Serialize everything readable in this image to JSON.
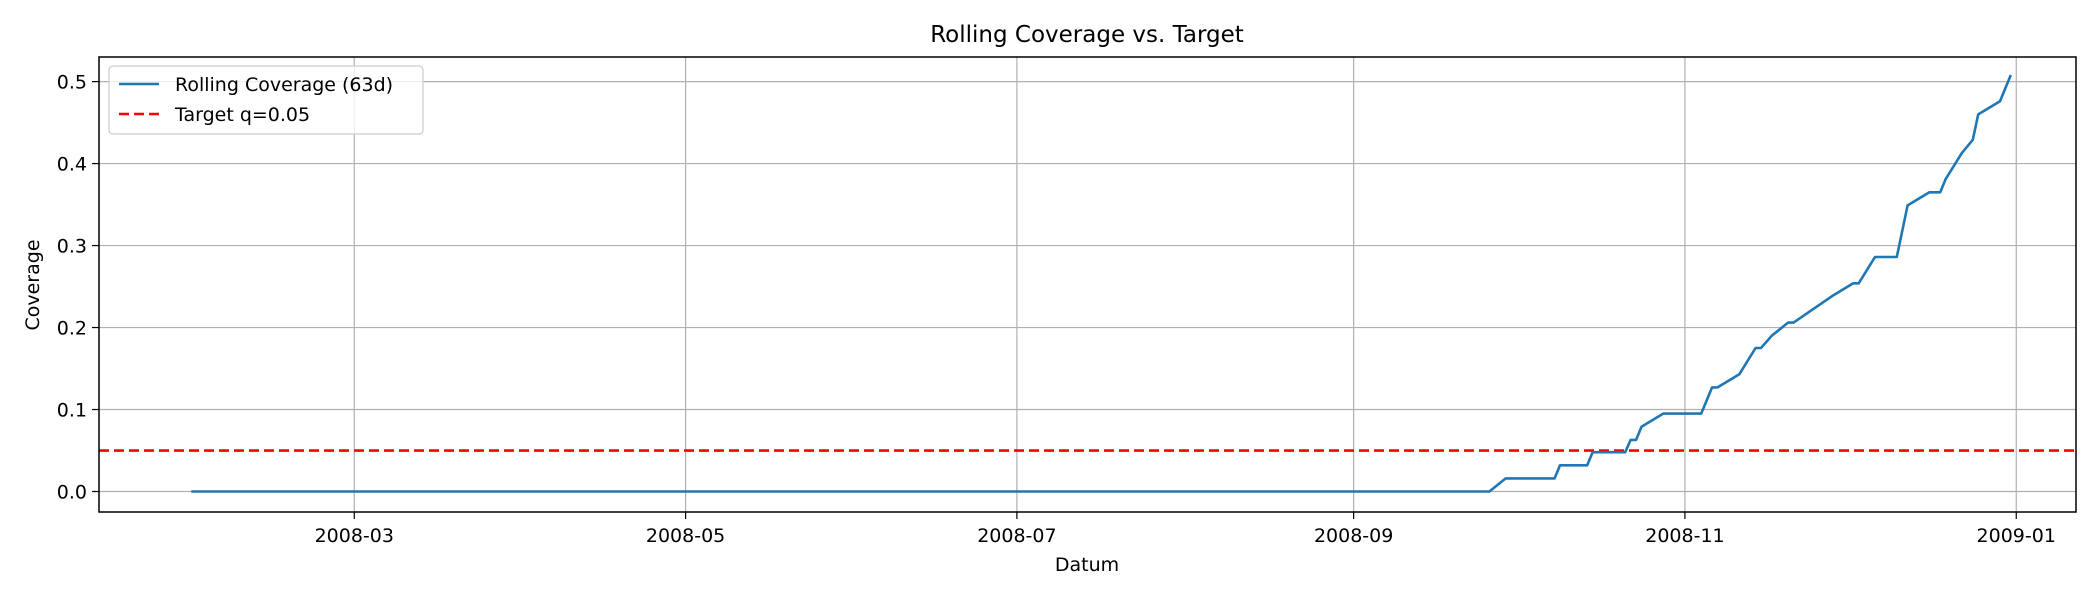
{
  "chart_data": {
    "type": "line",
    "title": "Rolling Coverage vs. Target",
    "xlabel": "Datum",
    "ylabel": "Coverage",
    "xlim": [
      "2008-01-14",
      "2009-01-12"
    ],
    "ylim": [
      -0.025,
      0.53
    ],
    "grid": true,
    "legend_position": "top-left",
    "x_ticks": [
      "2008-03",
      "2008-05",
      "2008-07",
      "2008-09",
      "2008-11",
      "2009-01"
    ],
    "y_ticks": [
      "0.0",
      "0.1",
      "0.2",
      "0.3",
      "0.4",
      "0.5"
    ],
    "series": [
      {
        "name": "Rolling Coverage (63d)",
        "color": "#1f77b4",
        "style": "solid",
        "x": [
          "2008-01-31",
          "2008-09-26",
          "2008-09-29",
          "2008-10-08",
          "2008-10-09",
          "2008-10-14",
          "2008-10-15",
          "2008-10-21",
          "2008-10-22",
          "2008-10-23",
          "2008-10-24",
          "2008-10-28",
          "2008-11-04",
          "2008-11-06",
          "2008-11-07",
          "2008-11-11",
          "2008-11-14",
          "2008-11-15",
          "2008-11-17",
          "2008-11-20",
          "2008-11-21",
          "2008-11-28",
          "2008-12-02",
          "2008-12-03",
          "2008-12-06",
          "2008-12-10",
          "2008-12-12",
          "2008-12-16",
          "2008-12-18",
          "2008-12-19",
          "2008-12-22",
          "2008-12-24",
          "2008-12-25",
          "2008-12-29",
          "2008-12-31"
        ],
        "values": [
          0.0,
          0.0,
          0.016,
          0.016,
          0.032,
          0.032,
          0.048,
          0.048,
          0.063,
          0.063,
          0.079,
          0.095,
          0.095,
          0.127,
          0.127,
          0.143,
          0.175,
          0.175,
          0.19,
          0.206,
          0.206,
          0.238,
          0.254,
          0.254,
          0.286,
          0.286,
          0.349,
          0.365,
          0.365,
          0.381,
          0.413,
          0.429,
          0.46,
          0.476,
          0.508
        ]
      },
      {
        "name": "Target q=0.05",
        "color": "#ff0000",
        "style": "dashed",
        "hline": 0.05
      }
    ]
  }
}
